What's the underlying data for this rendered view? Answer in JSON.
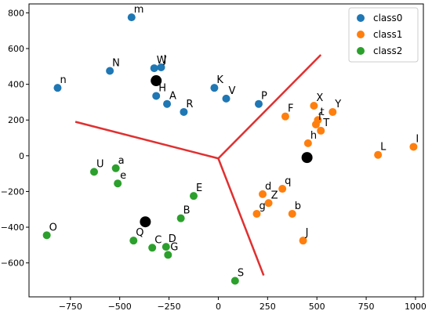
{
  "chart_data": {
    "type": "scatter",
    "title": "",
    "xlabel": "",
    "ylabel": "",
    "xlim": [
      -960,
      1040
    ],
    "ylim": [
      -790,
      850
    ],
    "xticks": [
      -750,
      -500,
      -250,
      0,
      250,
      500,
      750,
      1000
    ],
    "yticks": [
      -600,
      -400,
      -200,
      0,
      200,
      400,
      600,
      800
    ],
    "grid": false,
    "legend_position": "top-right",
    "series": [
      {
        "name": "class0",
        "color": "#1f77b4",
        "points": [
          {
            "label": "m",
            "x": -440,
            "y": 775
          },
          {
            "label": "N",
            "x": -550,
            "y": 475
          },
          {
            "label": "n",
            "x": -815,
            "y": 380
          },
          {
            "label": "W",
            "x": -325,
            "y": 490
          },
          {
            "label": "J",
            "x": -290,
            "y": 495
          },
          {
            "label": "H",
            "x": -315,
            "y": 335
          },
          {
            "label": "A",
            "x": -260,
            "y": 290
          },
          {
            "label": "R",
            "x": -175,
            "y": 245
          },
          {
            "label": "K",
            "x": -20,
            "y": 380
          },
          {
            "label": "V",
            "x": 40,
            "y": 320
          },
          {
            "label": "P",
            "x": 205,
            "y": 290
          }
        ]
      },
      {
        "name": "class1",
        "color": "#ff7f0e",
        "points": [
          {
            "label": "F",
            "x": 340,
            "y": 220
          },
          {
            "label": "X",
            "x": 485,
            "y": 280
          },
          {
            "label": "Y",
            "x": 580,
            "y": 245
          },
          {
            "label": "t",
            "x": 505,
            "y": 200
          },
          {
            "label": "f",
            "x": 495,
            "y": 175
          },
          {
            "label": "T",
            "x": 520,
            "y": 140
          },
          {
            "label": "h",
            "x": 455,
            "y": 70
          },
          {
            "label": "L",
            "x": 810,
            "y": 5
          },
          {
            "label": "I",
            "x": 990,
            "y": 50
          },
          {
            "label": "q",
            "x": 325,
            "y": -185
          },
          {
            "label": "d",
            "x": 225,
            "y": -215
          },
          {
            "label": "Z",
            "x": 255,
            "y": -265
          },
          {
            "label": "g",
            "x": 195,
            "y": -325
          },
          {
            "label": "b",
            "x": 375,
            "y": -325
          },
          {
            "label": "J",
            "x": 430,
            "y": -475
          }
        ]
      },
      {
        "name": "class2",
        "color": "#2ca02c",
        "points": [
          {
            "label": "U",
            "x": -630,
            "y": -90
          },
          {
            "label": "a",
            "x": -520,
            "y": -70
          },
          {
            "label": "e",
            "x": -510,
            "y": -155
          },
          {
            "label": "E",
            "x": -125,
            "y": -225
          },
          {
            "label": "B",
            "x": -190,
            "y": -350
          },
          {
            "label": "O",
            "x": -870,
            "y": -445
          },
          {
            "label": "Q",
            "x": -430,
            "y": -475
          },
          {
            "label": "C",
            "x": -335,
            "y": -515
          },
          {
            "label": "D",
            "x": -265,
            "y": -510
          },
          {
            "label": "G",
            "x": -255,
            "y": -555
          },
          {
            "label": "S",
            "x": 85,
            "y": -700
          }
        ]
      }
    ],
    "centroids": {
      "color": "#000000",
      "points": [
        {
          "x": -315,
          "y": 420
        },
        {
          "x": 450,
          "y": -10
        },
        {
          "x": -370,
          "y": -370
        }
      ]
    },
    "boundaries": {
      "color": "#e03030",
      "center": {
        "x": 0,
        "y": -15
      },
      "ends": [
        {
          "x": -725,
          "y": 190
        },
        {
          "x": 520,
          "y": 565
        },
        {
          "x": 230,
          "y": -670
        }
      ]
    }
  }
}
